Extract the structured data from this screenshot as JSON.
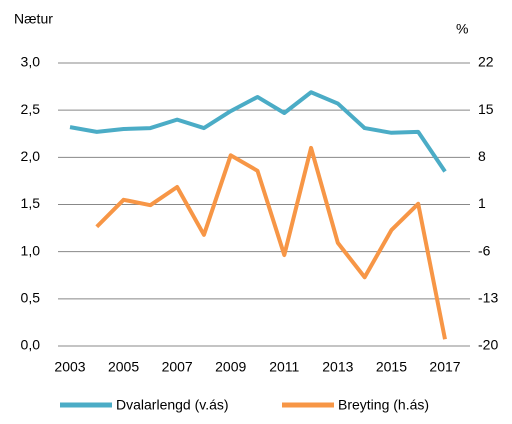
{
  "chart_data": {
    "type": "line",
    "y_label": "Nætur",
    "y2_label": "%",
    "x": [
      2003,
      2004,
      2005,
      2006,
      2007,
      2008,
      2009,
      2010,
      2011,
      2012,
      2013,
      2014,
      2015,
      2016,
      2017
    ],
    "xlim": [
      2003,
      2017
    ],
    "xticks": [
      2003,
      2005,
      2007,
      2009,
      2011,
      2013,
      2015,
      2017
    ],
    "ylim": [
      0,
      3
    ],
    "yticks": [
      {
        "value": 0,
        "label": "0,0"
      },
      {
        "value": 0.5,
        "label": "0,5"
      },
      {
        "value": 1,
        "label": "1,0"
      },
      {
        "value": 1.5,
        "label": "1,5"
      },
      {
        "value": 2,
        "label": "2,0"
      },
      {
        "value": 2.5,
        "label": "2,5"
      },
      {
        "value": 3,
        "label": "3,0"
      }
    ],
    "y2lim": [
      -20,
      22
    ],
    "y2ticks": [
      -20,
      -13,
      -6,
      1,
      8,
      15,
      22
    ],
    "grid": true,
    "legend": "bottom",
    "series": [
      {
        "name": "Dvalarlengd (v.ás)",
        "color": "#4bacc6",
        "axis": "y",
        "values": [
          2.32,
          2.27,
          2.3,
          2.31,
          2.4,
          2.31,
          2.49,
          2.64,
          2.47,
          2.69,
          2.57,
          2.31,
          2.26,
          2.27,
          1.85
        ]
      },
      {
        "name": "Breyting (h.ás)",
        "color": "#f79646",
        "axis": "y2",
        "values": [
          null,
          -2.3,
          1.7,
          0.9,
          3.6,
          -3.5,
          8.3,
          6.0,
          -6.5,
          9.4,
          -4.7,
          -9.8,
          -2.8,
          1.1,
          -19.0
        ]
      }
    ]
  }
}
